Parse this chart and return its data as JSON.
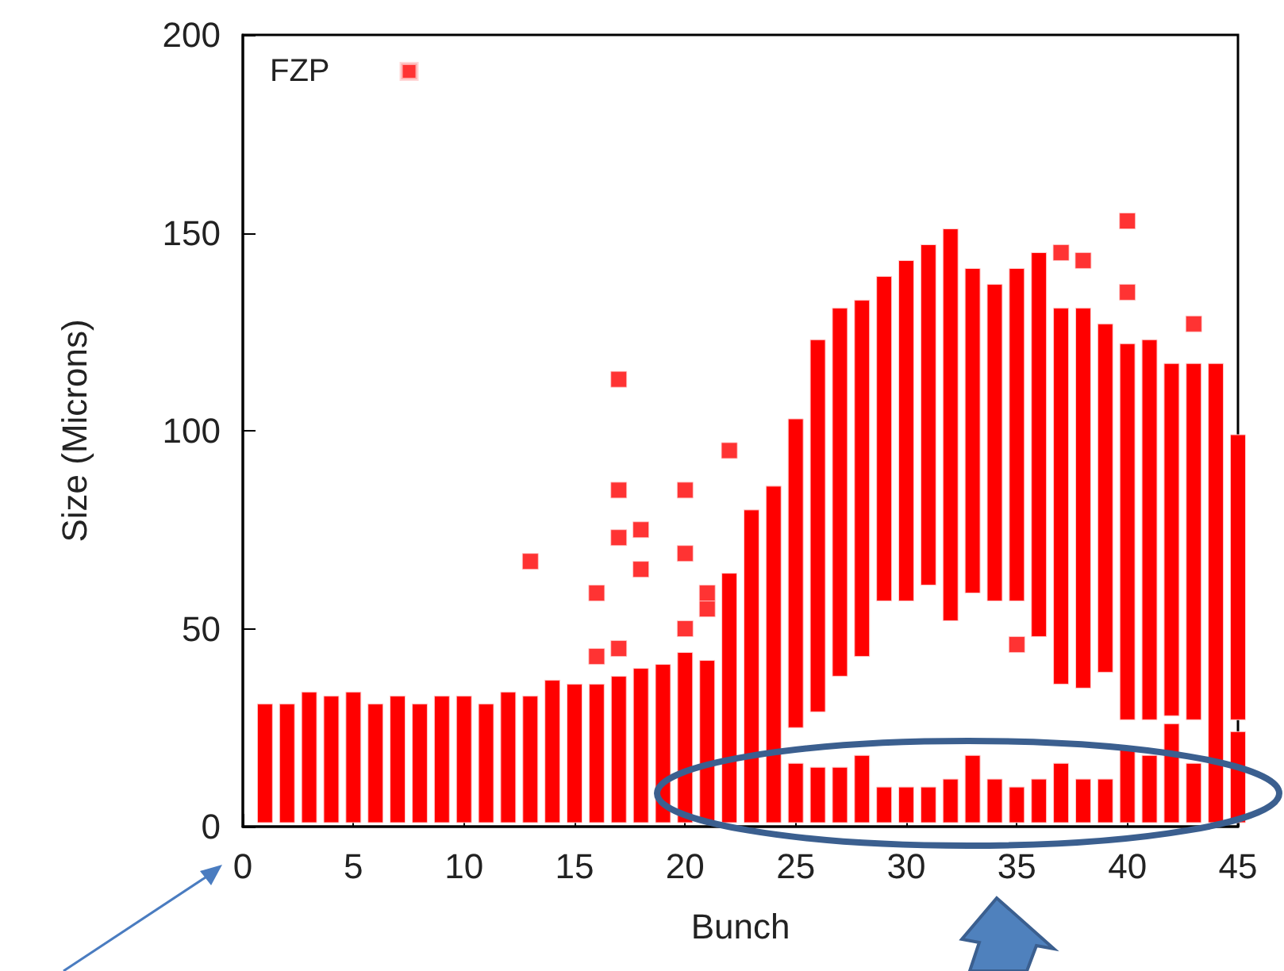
{
  "chart_data": {
    "type": "bar",
    "xlabel": "Bunch",
    "ylabel": "Size (Microns)",
    "x": [
      1,
      2,
      3,
      4,
      5,
      6,
      7,
      8,
      9,
      10,
      11,
      12,
      13,
      14,
      15,
      16,
      17,
      18,
      19,
      20,
      21,
      22,
      23,
      24,
      25,
      26,
      27,
      28,
      29,
      30,
      31,
      32,
      33,
      34,
      35,
      36,
      37,
      38,
      39,
      40,
      41,
      42,
      43,
      44,
      45
    ],
    "xlim": [
      0,
      45
    ],
    "xticks": [
      0,
      5,
      10,
      15,
      20,
      25,
      30,
      35,
      40,
      45
    ],
    "ylim": [
      0,
      200
    ],
    "yticks": [
      0,
      50,
      100,
      150,
      200
    ],
    "grid": false,
    "legend": "top left",
    "series": [
      {
        "type": "bar",
        "color": "#ff0000",
        "base": [
          1,
          1,
          1,
          1,
          1,
          1,
          1,
          1,
          1,
          1,
          1,
          1,
          1,
          1,
          1,
          1,
          1,
          1,
          1,
          1,
          1,
          1,
          1,
          1,
          1,
          1,
          1,
          1,
          1,
          1,
          1,
          1,
          1,
          1,
          1,
          1,
          1,
          1,
          1,
          1,
          1,
          1,
          1,
          1,
          1
        ],
        "values": [
          30,
          30,
          33,
          32,
          33,
          30,
          32,
          30,
          32,
          32,
          30,
          33,
          32,
          36,
          35,
          35,
          37,
          39,
          40,
          43,
          41,
          63,
          79,
          85,
          15,
          14,
          14,
          17,
          9,
          9,
          9,
          11,
          17,
          11,
          9,
          11,
          15,
          11,
          11,
          19,
          17,
          25,
          15,
          116,
          23
        ]
      },
      {
        "type": "bar",
        "color": "#ff0000",
        "base": [
          null,
          null,
          null,
          null,
          null,
          null,
          null,
          null,
          null,
          null,
          null,
          null,
          null,
          null,
          null,
          null,
          null,
          null,
          null,
          null,
          null,
          null,
          null,
          null,
          25,
          29,
          38,
          43,
          57,
          57,
          61,
          52,
          59,
          57,
          57,
          48,
          36,
          35,
          39,
          27,
          27,
          28,
          27,
          null,
          27
        ],
        "values": [
          null,
          null,
          null,
          null,
          null,
          null,
          null,
          null,
          null,
          null,
          null,
          null,
          null,
          null,
          null,
          null,
          null,
          null,
          null,
          null,
          null,
          null,
          null,
          null,
          78,
          94,
          93,
          90,
          82,
          86,
          86,
          99,
          82,
          80,
          84,
          97,
          95,
          96,
          88,
          95,
          96,
          89,
          90,
          null,
          72
        ]
      },
      {
        "type": "scatter",
        "name": "FZP",
        "color": "#ff0000",
        "marker": "square",
        "x": [
          13,
          16,
          16,
          17,
          17,
          17,
          17,
          18,
          18,
          20,
          20,
          20,
          21,
          21,
          22,
          35,
          37,
          38,
          40,
          40,
          43
        ],
        "values": [
          67,
          43,
          59,
          45,
          73,
          85,
          113,
          65,
          75,
          50,
          69,
          85,
          55,
          59,
          95,
          46,
          145,
          143,
          153,
          135,
          127
        ]
      }
    ]
  }
}
